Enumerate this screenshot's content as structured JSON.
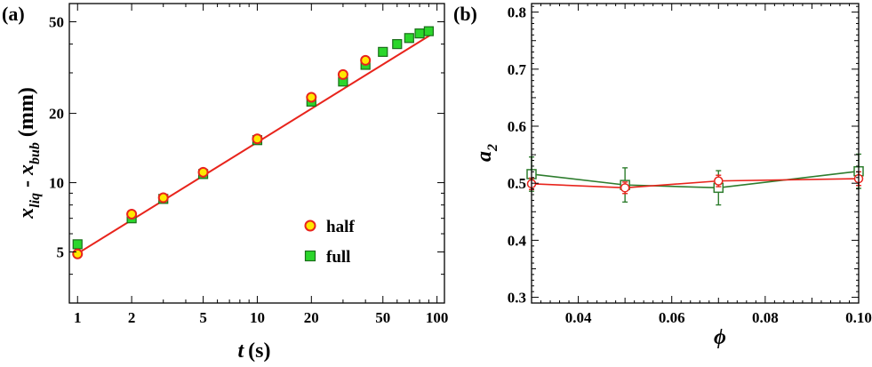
{
  "chart_data": [
    {
      "panel_label": "(a)",
      "type": "scatter",
      "xscale": "log",
      "yscale": "log",
      "xlim": [
        0.9,
        110
      ],
      "ylim": [
        3.0,
        60
      ],
      "xticks": [
        1,
        2,
        5,
        10,
        20,
        50,
        100
      ],
      "xtick_labels": [
        "1",
        "2",
        "5",
        "10",
        "20",
        "50",
        "100"
      ],
      "yticks": [
        5,
        10,
        20,
        50
      ],
      "ytick_labels": [
        "5",
        "10",
        "20",
        "50"
      ],
      "xlabel": {
        "main": "t",
        "unit": "(s)"
      },
      "ylabel": {
        "a": "x",
        "a_sub": "liq",
        "mid": " - ",
        "b": "x",
        "b_sub": "bub",
        "unit": " (mm)"
      },
      "legend_position": "lower-right",
      "series": [
        {
          "name": "half",
          "marker": "circle",
          "fill": "#ffe800",
          "stroke": "#e8241c",
          "points": [
            [
              1,
              4.9
            ],
            [
              2,
              7.3
            ],
            [
              3,
              8.6
            ],
            [
              5,
              11.1
            ],
            [
              10,
              15.5
            ],
            [
              20,
              23.5
            ],
            [
              30,
              29.5
            ],
            [
              40,
              34
            ]
          ]
        },
        {
          "name": "full",
          "marker": "square",
          "fill": "#2bd62b",
          "stroke": "#1a6e1a",
          "points": [
            [
              1,
              5.4
            ],
            [
              2,
              7.0
            ],
            [
              3,
              8.5
            ],
            [
              5,
              10.9
            ],
            [
              10,
              15.3
            ],
            [
              20,
              22.5
            ],
            [
              30,
              27.5
            ],
            [
              40,
              32.5
            ],
            [
              50,
              37
            ],
            [
              60,
              40
            ],
            [
              70,
              42.5
            ],
            [
              80,
              44.5
            ],
            [
              90,
              45.5
            ]
          ]
        }
      ],
      "fit_line": {
        "color": "#e8241c",
        "x": [
          0.97,
          95
        ],
        "y": [
          4.85,
          44.5
        ]
      }
    },
    {
      "panel_label": "(b)",
      "type": "line",
      "xlim": [
        0.03,
        0.1
      ],
      "ylim": [
        0.29,
        0.815
      ],
      "xticks": [
        0.04,
        0.06,
        0.08,
        0.1
      ],
      "xtick_labels": [
        "0.04",
        "0.06",
        "0.08",
        "0.10"
      ],
      "yticks": [
        0.3,
        0.4,
        0.5,
        0.6,
        0.7,
        0.8
      ],
      "ytick_labels": [
        "0.3",
        "0.4",
        "0.5",
        "0.6",
        "0.7",
        "0.8"
      ],
      "xlabel": "ϕ",
      "ylabel": {
        "main": "a",
        "sub": "2"
      },
      "series": [
        {
          "name": "half",
          "marker": "circle",
          "color": "#e8241c",
          "x": [
            0.03,
            0.05,
            0.07,
            0.1
          ],
          "y": [
            0.499,
            0.492,
            0.504,
            0.508
          ],
          "yerr": [
            0.01,
            0.01,
            0.01,
            0.012
          ]
        },
        {
          "name": "full",
          "marker": "square",
          "color": "#2e7d2e",
          "x": [
            0.03,
            0.05,
            0.07,
            0.1
          ],
          "y": [
            0.516,
            0.497,
            0.492,
            0.521
          ],
          "yerr": [
            0.03,
            0.03,
            0.03,
            0.03
          ]
        }
      ]
    }
  ]
}
